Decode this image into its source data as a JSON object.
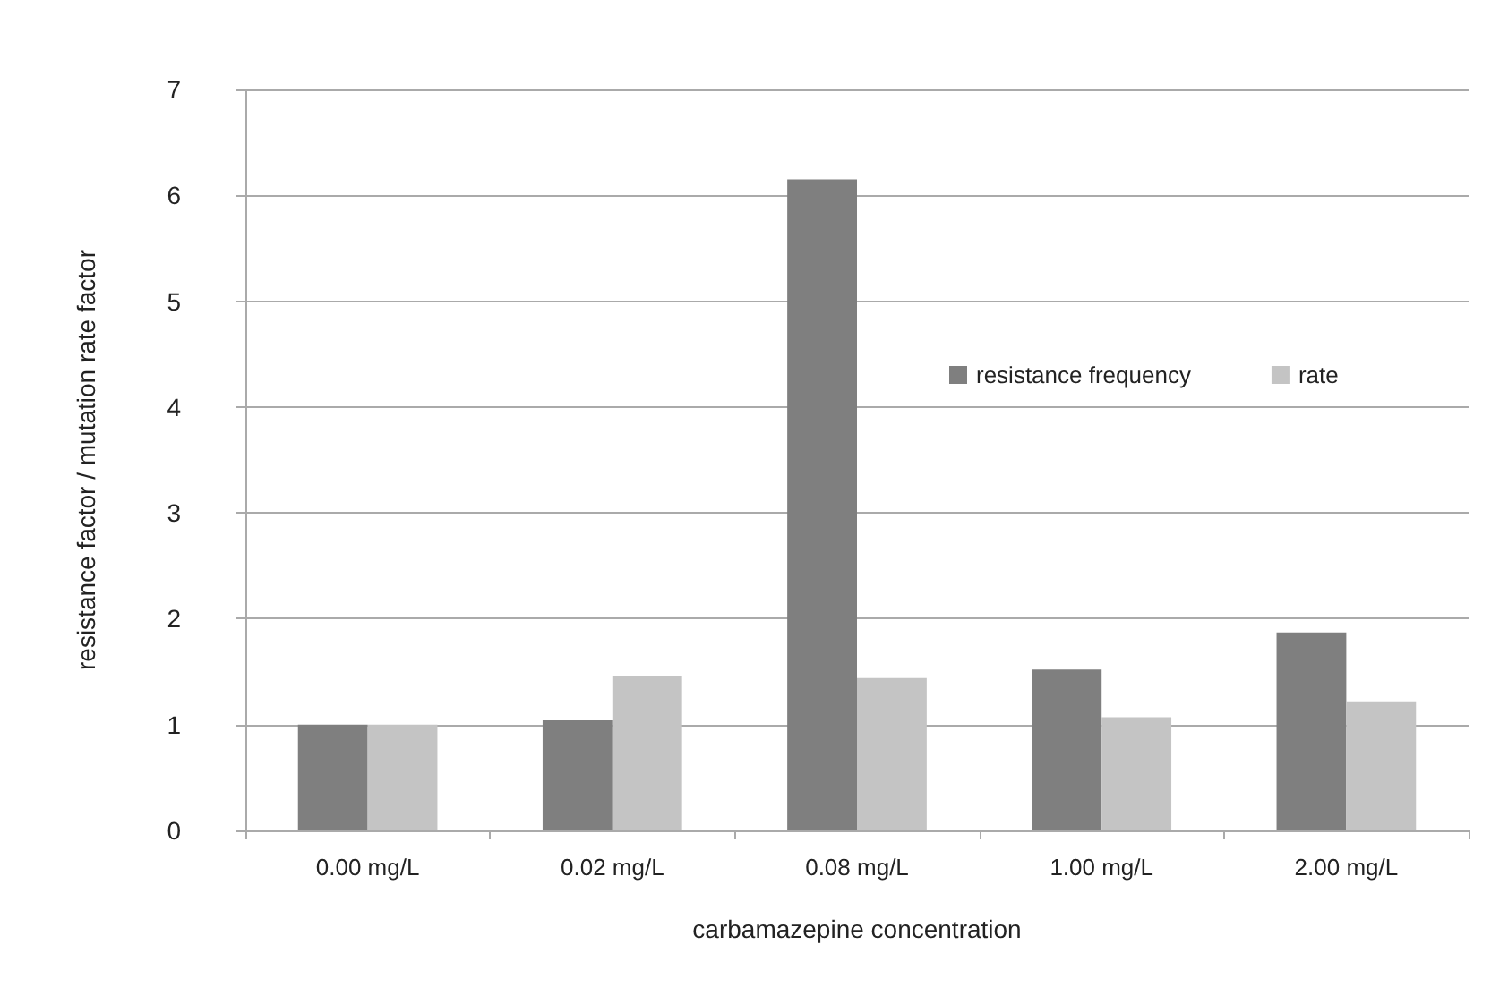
{
  "chart_data": {
    "type": "bar",
    "xlabel": "carbamazepine concentration",
    "ylabel": "resistance factor / mutation rate factor",
    "categories": [
      "0.00 mg/L",
      "0.02 mg/L",
      "0.08 mg/L",
      "1.00 mg/L",
      "2.00 mg/L"
    ],
    "series": [
      {
        "name": "resistance frequency",
        "color": "#7f7f7f",
        "values": [
          1.0,
          1.04,
          6.15,
          1.52,
          1.87
        ]
      },
      {
        "name": "rate",
        "color": "#c4c4c4",
        "values": [
          1.0,
          1.46,
          1.44,
          1.07,
          1.22
        ]
      }
    ],
    "ylim": [
      0,
      7
    ],
    "yticks": [
      0,
      1,
      2,
      3,
      4,
      5,
      6,
      7
    ],
    "grid": "y",
    "legend": "right"
  }
}
